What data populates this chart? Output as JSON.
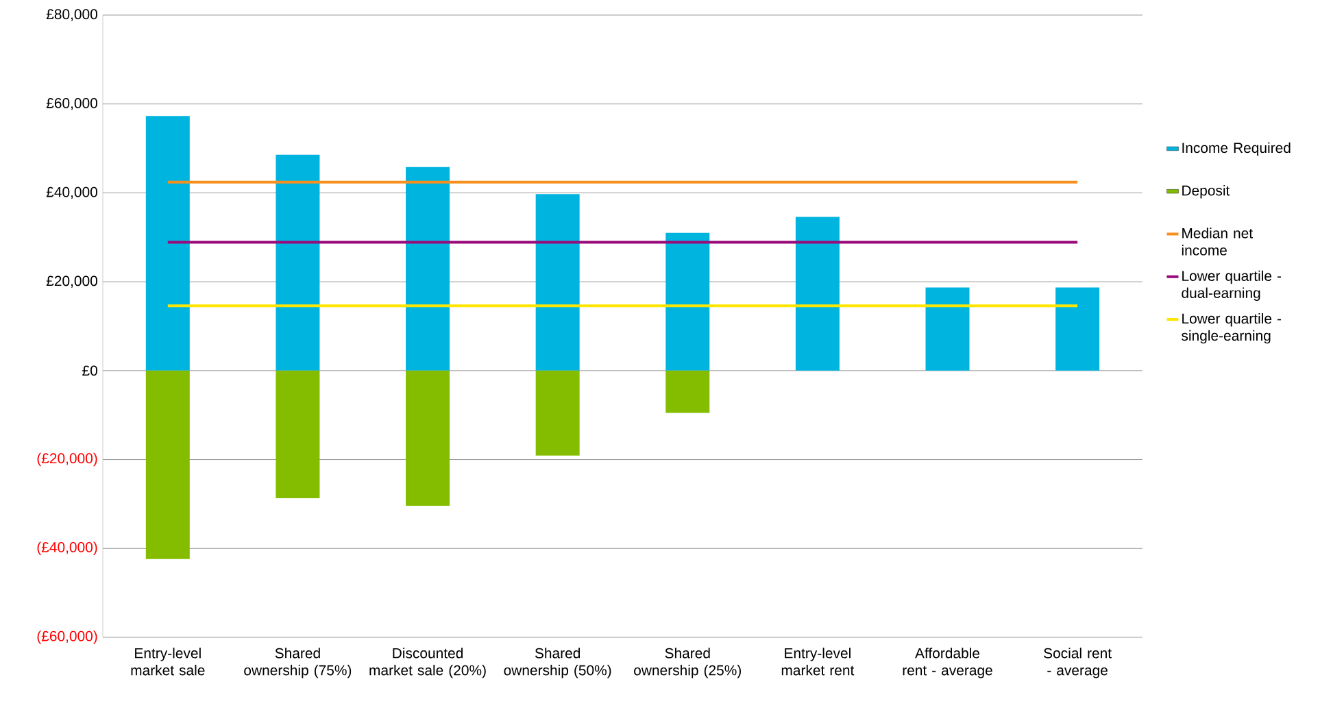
{
  "chart_data": {
    "type": "bar",
    "stacked": true,
    "categories": [
      "Entry-level market sale",
      "Shared ownership (75%)",
      "Discounted market sale (20%)",
      "Shared ownership (50%)",
      "Shared ownership (25%)",
      "Entry-level market rent",
      "Affordable rent - average",
      "Social rent - average"
    ],
    "series": [
      {
        "name": "Income Required",
        "color": "#00b4e0",
        "values": [
          57300,
          48600,
          45800,
          39700,
          31000,
          34600,
          18700,
          18700
        ]
      },
      {
        "name": "Deposit",
        "color": "#84bd00",
        "values": [
          -42400,
          -28700,
          -30400,
          -19100,
          -9500,
          null,
          null,
          null
        ]
      },
      {
        "name": "Median net income",
        "type": "line",
        "color": "#f7901e",
        "values": [
          42400,
          42400,
          42400,
          42400,
          42400,
          42400,
          42400,
          42400
        ]
      },
      {
        "name": "Lower quartile - dual-earning",
        "type": "line",
        "color": "#990a7a",
        "values": [
          28900,
          28900,
          28900,
          28900,
          28900,
          28900,
          28900,
          28900
        ]
      },
      {
        "name": "Lower quartile - single-earning",
        "type": "line",
        "color": "#ffe600",
        "values": [
          14600,
          14600,
          14600,
          14600,
          14600,
          14600,
          14600,
          14600
        ]
      }
    ],
    "ylim": [
      -60000,
      80000
    ],
    "yticks": [
      {
        "value": -60000,
        "label": "(£60,000)"
      },
      {
        "value": -40000,
        "label": "(£40,000)"
      },
      {
        "value": -20000,
        "label": "(£20,000)"
      },
      {
        "value": 0,
        "label": "£0"
      },
      {
        "value": 20000,
        "label": "£20,000"
      },
      {
        "value": 40000,
        "label": "£40,000"
      },
      {
        "value": 60000,
        "label": "£60,000"
      },
      {
        "value": 80000,
        "label": "£80,000"
      }
    ],
    "grid": "y",
    "legend": "right"
  }
}
